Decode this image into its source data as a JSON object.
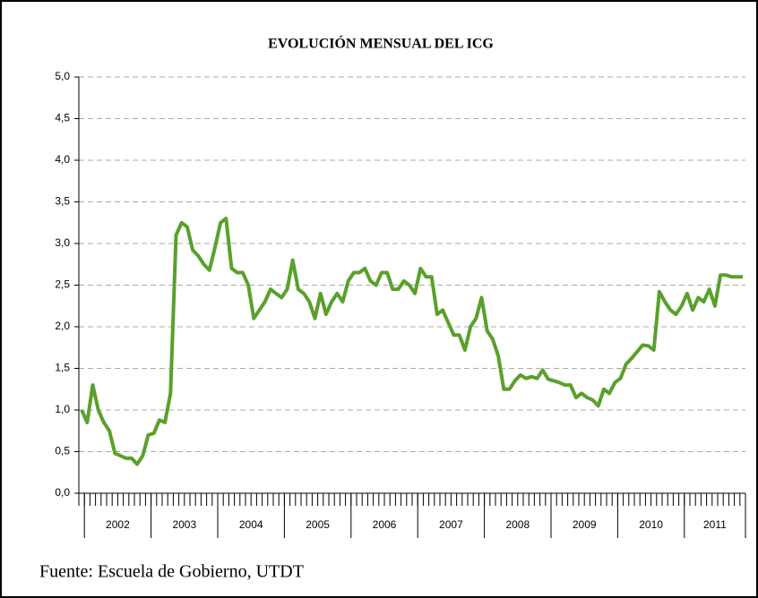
{
  "chart_data": {
    "type": "line",
    "title": "EVOLUCIÓN MENSUAL DEL ICG",
    "source": "Fuente: Escuela de Gobierno, UTDT",
    "year_labels": [
      "2002",
      "2003",
      "2004",
      "2005",
      "2006",
      "2007",
      "2008",
      "2009",
      "2010",
      "2011"
    ],
    "color": "#5aa02c",
    "values": [
      1.0,
      0.85,
      1.3,
      1.0,
      0.85,
      0.75,
      0.48,
      0.45,
      0.42,
      0.42,
      0.35,
      0.45,
      0.7,
      0.72,
      0.88,
      0.85,
      1.2,
      3.1,
      3.25,
      3.2,
      2.92,
      2.85,
      2.75,
      2.68,
      2.95,
      3.25,
      3.3,
      2.7,
      2.65,
      2.65,
      2.5,
      2.1,
      2.2,
      2.3,
      2.45,
      2.4,
      2.35,
      2.45,
      2.8,
      2.45,
      2.4,
      2.3,
      2.1,
      2.4,
      2.15,
      2.3,
      2.4,
      2.3,
      2.55,
      2.65,
      2.65,
      2.7,
      2.55,
      2.5,
      2.65,
      2.65,
      2.45,
      2.45,
      2.55,
      2.5,
      2.4,
      2.7,
      2.6,
      2.6,
      2.15,
      2.2,
      2.05,
      1.9,
      1.9,
      1.72,
      2.0,
      2.1,
      2.35,
      1.95,
      1.85,
      1.65,
      1.25,
      1.25,
      1.35,
      1.42,
      1.38,
      1.4,
      1.38,
      1.48,
      1.37,
      1.35,
      1.33,
      1.3,
      1.3,
      1.15,
      1.2,
      1.15,
      1.12,
      1.05,
      1.25,
      1.2,
      1.33,
      1.38,
      1.55,
      1.62,
      1.7,
      1.78,
      1.77,
      1.72,
      2.42,
      2.3,
      2.2,
      2.15,
      2.25,
      2.4,
      2.2,
      2.35,
      2.3,
      2.45,
      2.25,
      2.62,
      2.62,
      2.6,
      2.6,
      2.6
    ],
    "ylim": [
      0,
      5
    ],
    "yticks": [
      {
        "value": 0,
        "label": "0,0"
      },
      {
        "value": 0.5,
        "label": "0,5"
      },
      {
        "value": 1,
        "label": "1,0"
      },
      {
        "value": 1.5,
        "label": "1,5"
      },
      {
        "value": 2,
        "label": "2,0"
      },
      {
        "value": 2.5,
        "label": "2,5"
      },
      {
        "value": 3,
        "label": "3,0"
      },
      {
        "value": 3.5,
        "label": "3,5"
      },
      {
        "value": 4,
        "label": "4,0"
      },
      {
        "value": 4.5,
        "label": "4,5"
      },
      {
        "value": 5,
        "label": "5,0"
      }
    ],
    "grid": true
  }
}
